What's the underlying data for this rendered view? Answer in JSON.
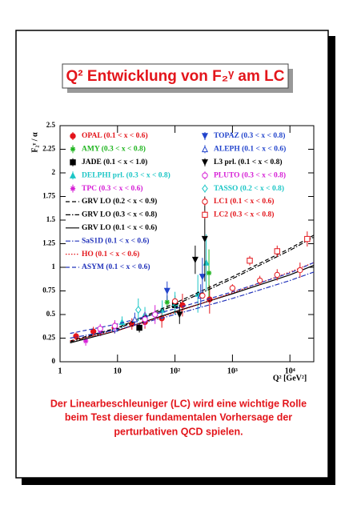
{
  "chart_data": {
    "type": "scatter",
    "title": "Q² Entwicklung von F₂ᵞ am LC",
    "xlabel": "Q² [GeV²]",
    "ylabel": "F₂ᵞ / α",
    "caption": [
      "Der Linearbeschleuniger (LC) wird eine wichtige Rolle",
      "beim Test dieser fundamentalen Vorhersage der",
      "perturbativen QCD spielen."
    ],
    "xscale": "log",
    "xlim": [
      1,
      26000
    ],
    "ylim": [
      0,
      2.5
    ],
    "xticks": [
      1,
      10,
      {
        "value": 100,
        "label": "10²"
      },
      {
        "value": 1000,
        "label": "10³"
      },
      {
        "value": 10000,
        "label": "10⁴"
      }
    ],
    "yticks": [
      0,
      0.25,
      0.5,
      0.75,
      1,
      1.25,
      1.5,
      1.75,
      2,
      2.25,
      2.5
    ],
    "legend": "upper left",
    "series": [
      {
        "name": "OPAL (0.1 < x < 0.6)",
        "color": "#e3151b",
        "marker": "circle",
        "x": [
          1.9,
          3.8,
          8.9,
          17.8,
          30,
          59,
          135,
          400
        ],
        "values": [
          0.27,
          0.32,
          0.36,
          0.4,
          0.42,
          0.46,
          0.6,
          0.66
        ],
        "errors": [
          0.04,
          0.05,
          0.06,
          0.06,
          0.07,
          0.1,
          0.12,
          0.15
        ]
      },
      {
        "name": "AMY (0.3 < x < 0.8)",
        "color": "#1fb51f",
        "marker": "star",
        "x": [
          73,
          390
        ],
        "values": [
          0.63,
          0.94
        ],
        "errors": [
          0.07,
          0.25
        ]
      },
      {
        "name": "JADE (0.1 < x < 1.0)",
        "color": "#000000",
        "marker": "square",
        "x": [
          24,
          100
        ],
        "values": [
          0.36,
          0.6
        ],
        "errors": [
          0.05,
          0.1
        ]
      },
      {
        "name": "DELPHI prl. (0.3 < x < 0.8)",
        "color": "#1cc6c6",
        "marker": "triangle",
        "x": [
          12,
          30,
          60,
          100,
          250,
          350
        ],
        "values": [
          0.42,
          0.5,
          0.55,
          0.62,
          0.72,
          1.05
        ],
        "errors": [
          0.06,
          0.08,
          0.1,
          0.12,
          0.2,
          0.3
        ]
      },
      {
        "name": "TPC (0.3 < x < 0.6)",
        "color": "#d61fd6",
        "marker": "star",
        "x": [
          2.8,
          5.1
        ],
        "values": [
          0.22,
          0.32
        ],
        "errors": [
          0.05,
          0.05
        ]
      },
      {
        "name": "GRV LO (0.2 < x < 0.9)",
        "color": "#000000",
        "dash": "dashed",
        "x": [
          1.5,
          10,
          100,
          1000,
          10000,
          26000
        ],
        "values": [
          0.22,
          0.36,
          0.62,
          0.9,
          1.2,
          1.34
        ]
      },
      {
        "name": "GRV LO (0.3 < x < 0.8)",
        "color": "#000000",
        "dash": "dashdot",
        "x": [
          1.5,
          10,
          100,
          1000,
          10000,
          26000
        ],
        "values": [
          0.21,
          0.35,
          0.6,
          0.88,
          1.18,
          1.32
        ]
      },
      {
        "name": "GRV LO (0.1 < x < 0.6)",
        "color": "#000000",
        "dash": "solid",
        "x": [
          1.5,
          10,
          100,
          1000,
          10000,
          26000
        ],
        "values": [
          0.2,
          0.33,
          0.53,
          0.72,
          0.92,
          1.02
        ]
      },
      {
        "name": "SaS1D (0.1 < x < 0.6)",
        "color": "#2233bb",
        "dash": "dashdot",
        "x": [
          1.5,
          10,
          100,
          1000,
          10000,
          26000
        ],
        "values": [
          0.25,
          0.34,
          0.5,
          0.67,
          0.86,
          0.95
        ]
      },
      {
        "name": "HO (0.1 < x < 0.6)",
        "color": "#e3151b",
        "dash": "dotted",
        "x": [
          1.5,
          10,
          100,
          1000,
          10000,
          26000
        ],
        "values": [
          0.22,
          0.33,
          0.52,
          0.73,
          0.95,
          1.05
        ]
      },
      {
        "name": "ASYM (0.1 < x < 0.6)",
        "color": "#2233bb",
        "dash": "dashed",
        "x": [
          1.5,
          10,
          100,
          1000,
          10000,
          26000
        ],
        "values": [
          0.3,
          0.4,
          0.56,
          0.74,
          0.94,
          1.05
        ]
      },
      {
        "name": "TOPAZ (0.3 < x < 0.8)",
        "color": "#2244cc",
        "marker": "triangle-down",
        "x": [
          73,
          300
        ],
        "values": [
          0.75,
          0.9
        ],
        "errors": [
          0.1,
          0.2
        ]
      },
      {
        "name": "ALEPH (0.1 < x < 0.6)",
        "color": "#2244cc",
        "marker": "triangle-open",
        "x": [
          9,
          20,
          280
        ],
        "values": [
          0.35,
          0.45,
          0.7
        ],
        "errors": [
          0.05,
          0.07,
          0.12
        ]
      },
      {
        "name": "L3 prl. (0.1 < x < 0.8)",
        "color": "#000000",
        "marker": "triangle-down",
        "x": [
          120,
          225,
          330
        ],
        "values": [
          0.5,
          1.08,
          1.3
        ],
        "errors": [
          0.1,
          0.15,
          0.45
        ]
      },
      {
        "name": "PLUTO (0.3 < x < 0.8)",
        "color": "#d61fd6",
        "marker": "circle-open",
        "x": [
          5,
          9,
          30,
          45
        ],
        "values": [
          0.35,
          0.38,
          0.45,
          0.5
        ],
        "errors": [
          0.05,
          0.06,
          0.08,
          0.1
        ]
      },
      {
        "name": "TASSO (0.2 < x < 0.8)",
        "color": "#1cc6c6",
        "marker": "diamond",
        "x": [
          23
        ],
        "values": [
          0.55
        ],
        "errors": [
          0.12
        ]
      },
      {
        "name": "LC1 (0.1 < x < 0.6)",
        "color": "#e3151b",
        "marker": "circle-open",
        "x": [
          100,
          300,
          1000,
          3000,
          6000,
          15000
        ],
        "values": [
          0.64,
          0.7,
          0.78,
          0.86,
          0.92,
          0.97
        ],
        "errors": [
          0.03,
          0.03,
          0.04,
          0.05,
          0.06,
          0.08
        ]
      },
      {
        "name": "LC2 (0.3 < x < 0.8)",
        "color": "#e3151b",
        "marker": "square-open",
        "x": [
          2000,
          6000,
          20000
        ],
        "values": [
          1.07,
          1.17,
          1.3
        ],
        "errors": [
          0.05,
          0.06,
          0.08
        ]
      }
    ]
  }
}
